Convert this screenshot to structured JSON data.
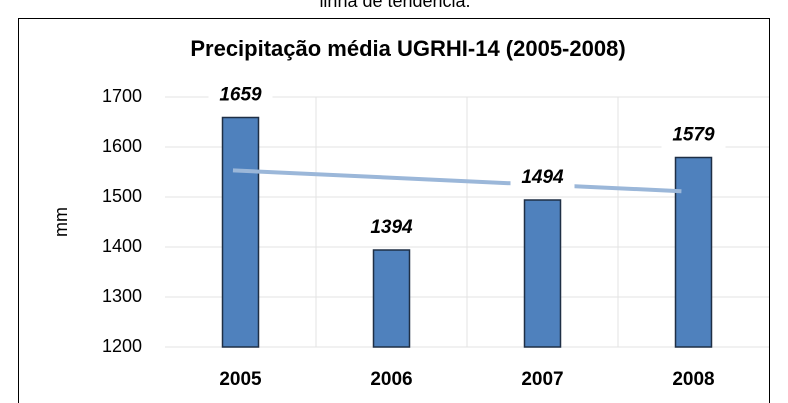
{
  "caption": "linha de tendência.",
  "chart_data": {
    "type": "bar",
    "title": "Precipitação média UGRHI-14 (2005-2008)",
    "y_label": "mm",
    "categories": [
      "2005",
      "2006",
      "2007",
      "2008"
    ],
    "values": [
      1659,
      1394,
      1494,
      1579
    ],
    "color": "#4f81bd",
    "ylim": [
      1200,
      1700
    ],
    "yticks": [
      1200,
      1300,
      1400,
      1500,
      1600,
      1700
    ],
    "grid": true,
    "trendline": true,
    "trendline_color": "#9bb7d9"
  }
}
